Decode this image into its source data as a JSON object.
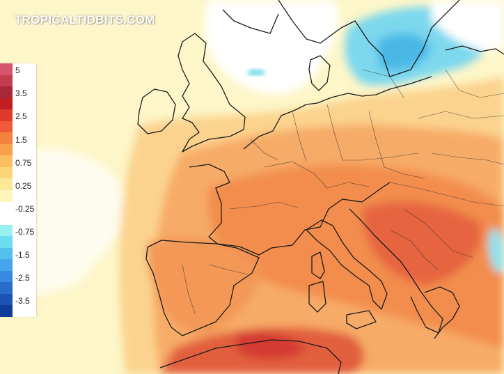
{
  "watermark": "TROPICALTIDBITS.COM",
  "legend": {
    "labels": [
      "5",
      "3.5",
      "2.5",
      "1.5",
      "0.75",
      "0.25",
      "-0.25",
      "-0.75",
      "-1.5",
      "-2.5",
      "-3.5"
    ],
    "swatches": [
      "#d6546e",
      "#c23c52",
      "#a82838",
      "#c01e20",
      "#e03a2a",
      "#ee5a3a",
      "#f4823e",
      "#f8a04c",
      "#fbbf60",
      "#fcd47a",
      "#fde89a",
      "#fef4bc",
      "#ffffff",
      "#ffffff",
      "#9af0f0",
      "#6cdcf0",
      "#54c0ee",
      "#46a4ea",
      "#3888e0",
      "#2a6ccc",
      "#1c54b4",
      "#0e3c98"
    ]
  },
  "colors": {
    "sea_background": "#fdf6c8",
    "anomaly_light": "#fce6a0",
    "anomaly_orange": "#f7a860",
    "anomaly_strong": "#ec7a48",
    "anomaly_red": "#dd4a34",
    "cold_blue": "#5ccbea",
    "neutral_white": "#ffffff",
    "boundaries": "#1a1a1a"
  }
}
